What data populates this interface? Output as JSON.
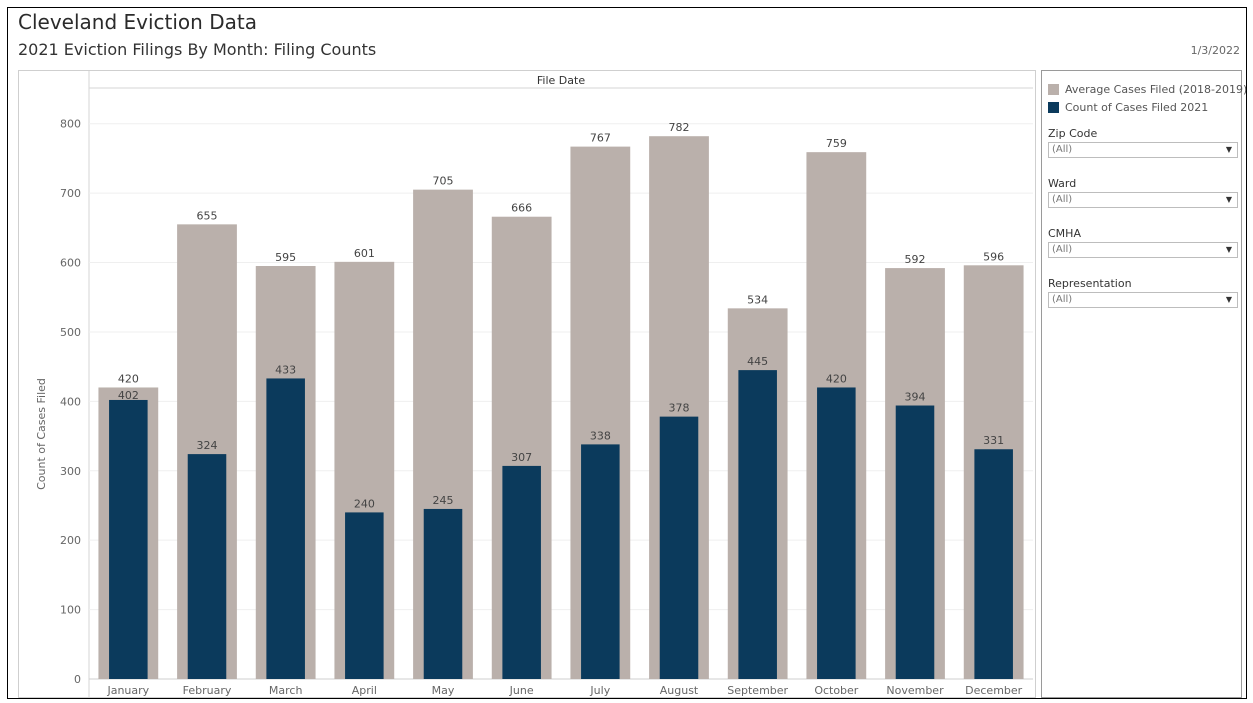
{
  "header": {
    "title": "Cleveland Eviction Data",
    "subtitle": "2021 Eviction Filings By Month: Filing Counts",
    "date": "1/3/2022"
  },
  "legend": [
    {
      "label": "Average Cases Filed (2018-2019)",
      "color": "#bab0ab"
    },
    {
      "label": "Count of Cases Filed 2021",
      "color": "#0b3a5c"
    }
  ],
  "filters": [
    {
      "label": "Zip Code",
      "value": "(All)"
    },
    {
      "label": "Ward",
      "value": "(All)"
    },
    {
      "label": "CMHA",
      "value": "(All)"
    },
    {
      "label": "Representation",
      "value": "(All)"
    }
  ],
  "chart_data": {
    "type": "bar",
    "column_header": "File Date",
    "ylabel": "Count of Cases Filed",
    "ylim": [
      0,
      850
    ],
    "yticks": [
      0,
      100,
      200,
      300,
      400,
      500,
      600,
      700,
      800
    ],
    "grid": true,
    "categories": [
      "January",
      "February",
      "March",
      "April",
      "May",
      "June",
      "July",
      "August",
      "September",
      "October",
      "November",
      "December"
    ],
    "series": [
      {
        "name": "Average Cases Filed (2018-2019)",
        "color": "#bab0ab",
        "values": [
          420,
          655,
          595,
          601,
          705,
          666,
          767,
          782,
          534,
          759,
          592,
          596
        ]
      },
      {
        "name": "Count of Cases Filed 2021",
        "color": "#0b3a5c",
        "values": [
          402,
          324,
          433,
          240,
          245,
          307,
          338,
          378,
          445,
          420,
          394,
          331
        ]
      }
    ]
  }
}
